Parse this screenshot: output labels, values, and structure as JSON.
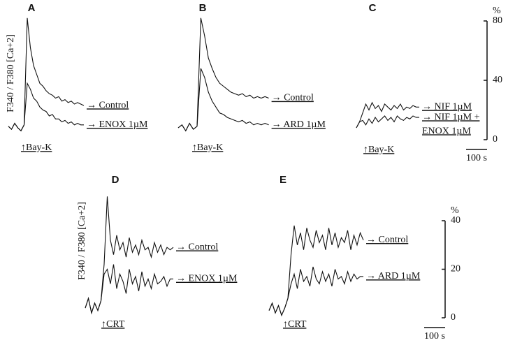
{
  "chart_data": [
    {
      "type": "line",
      "panel": "A",
      "ylabel": "F340 / F380 [Ca+2]",
      "stimulus": "↑Bay-K",
      "x": [
        0,
        15,
        30,
        45,
        60,
        75,
        90,
        105,
        120,
        135,
        150,
        165,
        180,
        195,
        210,
        225,
        240,
        255,
        270,
        285,
        300,
        315,
        330,
        345,
        360
      ],
      "xlim": [
        0,
        360
      ],
      "ylim": [
        0,
        80
      ],
      "series": [
        {
          "name": "→ Control",
          "color": "#111",
          "values": [
            9,
            7,
            11,
            8,
            6,
            10,
            82,
            62,
            50,
            44,
            38,
            36,
            33,
            31,
            30,
            28,
            29,
            26,
            27,
            25,
            26,
            24,
            25,
            24,
            23
          ]
        },
        {
          "name": "→ ENOX 1µM",
          "color": "#111",
          "values": [
            9,
            7,
            11,
            8,
            6,
            10,
            38,
            34,
            28,
            26,
            22,
            20,
            19,
            16,
            17,
            14,
            14,
            12,
            13,
            11,
            12,
            10,
            11,
            10,
            10
          ]
        }
      ]
    },
    {
      "type": "line",
      "panel": "B",
      "stimulus": "↑Bay-K",
      "x": [
        0,
        18,
        36,
        54,
        72,
        90,
        108,
        126,
        144,
        162,
        180,
        198,
        216,
        234,
        252,
        270,
        288,
        306,
        324,
        342,
        360,
        378,
        396,
        414,
        432
      ],
      "xlim": [
        0,
        432
      ],
      "ylim": [
        0,
        80
      ],
      "series": [
        {
          "name": "→ Control",
          "color": "#111",
          "values": [
            8,
            10,
            6,
            11,
            7,
            9,
            82,
            70,
            55,
            48,
            42,
            38,
            36,
            34,
            32,
            31,
            30,
            31,
            29,
            30,
            28,
            29,
            28,
            29,
            28
          ]
        },
        {
          "name": "→ ARD 1µM",
          "color": "#111",
          "values": [
            8,
            10,
            6,
            11,
            7,
            9,
            48,
            42,
            32,
            26,
            22,
            18,
            17,
            15,
            14,
            13,
            12,
            13,
            11,
            12,
            10,
            11,
            10,
            11,
            10
          ]
        }
      ]
    },
    {
      "type": "line",
      "panel": "C",
      "stimulus": "↑Bay-K",
      "unit": "%",
      "x": [
        0,
        15,
        30,
        45,
        60,
        75,
        90,
        105,
        120,
        135,
        150,
        165,
        180,
        195,
        210,
        225,
        240,
        255,
        270,
        285,
        300
      ],
      "xlim": [
        0,
        300
      ],
      "ylim": [
        0,
        80
      ],
      "yticks": [
        0,
        40,
        80
      ],
      "scale_bar": {
        "value": 100,
        "label": "100 s"
      },
      "series": [
        {
          "name": "→ NIF 1µM",
          "color": "#111",
          "values": [
            8,
            12,
            18,
            24,
            20,
            25,
            21,
            23,
            19,
            24,
            22,
            20,
            23,
            21,
            24,
            20,
            22,
            21,
            23,
            22,
            22
          ]
        },
        {
          "name": [
            "→ NIF 1µM +",
            "ENOX 1µM"
          ],
          "color": "#111",
          "values": [
            8,
            12,
            13,
            10,
            14,
            11,
            15,
            12,
            14,
            16,
            13,
            15,
            12,
            16,
            14,
            13,
            15,
            14,
            16,
            15,
            15
          ]
        }
      ]
    },
    {
      "type": "line",
      "panel": "D",
      "ylabel": "F340 / F380 [Ca+2]",
      "stimulus": "↑CRT",
      "x": [
        0,
        15,
        30,
        45,
        60,
        75,
        90,
        105,
        120,
        135,
        150,
        165,
        180,
        195,
        210,
        225,
        240,
        255,
        270,
        285,
        300,
        315,
        330,
        345,
        360,
        375,
        390,
        405,
        420
      ],
      "xlim": [
        0,
        420
      ],
      "ylim": [
        0,
        40
      ],
      "series": [
        {
          "name": "→ Control",
          "color": "#111",
          "values": [
            4,
            8,
            2,
            6,
            3,
            7,
            22,
            50,
            32,
            26,
            34,
            28,
            31,
            25,
            33,
            27,
            30,
            26,
            32,
            28,
            29,
            25,
            31,
            27,
            30,
            26,
            29,
            28,
            29
          ]
        },
        {
          "name": "→ ENOX 1µM",
          "color": "#111",
          "values": [
            4,
            8,
            2,
            6,
            3,
            7,
            18,
            20,
            14,
            22,
            12,
            18,
            15,
            10,
            20,
            14,
            17,
            11,
            19,
            13,
            16,
            12,
            18,
            14,
            15,
            17,
            13,
            16,
            16
          ]
        }
      ]
    },
    {
      "type": "line",
      "panel": "E",
      "stimulus": "↑CRT",
      "unit": "%",
      "x": [
        0,
        15,
        30,
        45,
        60,
        75,
        90,
        105,
        120,
        135,
        150,
        165,
        180,
        195,
        210,
        225,
        240,
        255,
        270,
        285,
        300,
        315,
        330,
        345,
        360,
        375,
        390,
        405,
        420,
        435,
        450
      ],
      "xlim": [
        0,
        450
      ],
      "ylim": [
        0,
        40
      ],
      "yticks": [
        0,
        20,
        40
      ],
      "scale_bar": {
        "value": 100,
        "label": "100 s"
      },
      "series": [
        {
          "name": "→ Control",
          "color": "#111",
          "values": [
            3,
            6,
            2,
            5,
            1,
            4,
            8,
            26,
            38,
            30,
            35,
            28,
            37,
            32,
            29,
            36,
            31,
            34,
            28,
            37,
            30,
            35,
            29,
            33,
            31,
            36,
            28,
            34,
            30,
            35,
            32
          ]
        },
        {
          "name": "→ ARD 1µM",
          "color": "#111",
          "values": [
            3,
            6,
            2,
            5,
            1,
            4,
            8,
            14,
            18,
            12,
            20,
            15,
            17,
            13,
            21,
            16,
            14,
            19,
            15,
            18,
            13,
            20,
            16,
            17,
            14,
            19,
            15,
            18,
            16,
            17,
            17
          ]
        }
      ]
    }
  ]
}
